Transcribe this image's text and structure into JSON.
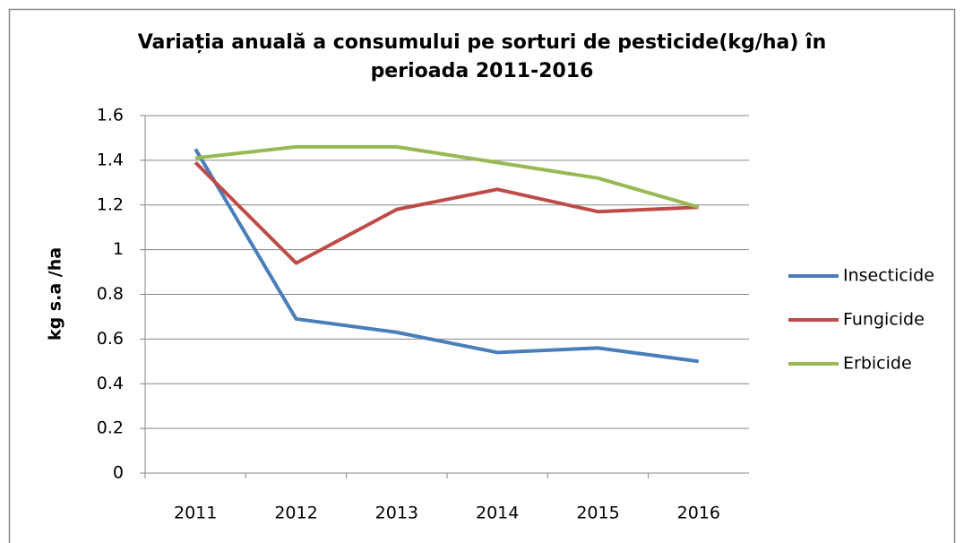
{
  "chart_data": {
    "type": "line",
    "title": "Variația anuală a consumului pe sorturi de pesticide(kg/ha) în perioada 2011-2016",
    "y_label": "kg s.a /ha",
    "categories": [
      "2011",
      "2012",
      "2013",
      "2014",
      "2015",
      "2016"
    ],
    "series": [
      {
        "name": "Insecticide",
        "color": "#4a7ebb",
        "values": [
          1.45,
          0.69,
          0.63,
          0.54,
          0.56,
          0.5
        ]
      },
      {
        "name": "Fungicide",
        "color": "#be4b48",
        "values": [
          1.39,
          0.94,
          1.18,
          1.27,
          1.17,
          1.19
        ]
      },
      {
        "name": "Erbicide",
        "color": "#98b954",
        "values": [
          1.41,
          1.46,
          1.46,
          1.39,
          1.32,
          1.19
        ]
      }
    ],
    "ylim": [
      0,
      1.6
    ],
    "yticks": [
      0,
      0.2,
      0.4,
      0.6,
      0.8,
      1,
      1.2,
      1.4,
      1.6
    ],
    "grid": true,
    "legend": "right"
  }
}
